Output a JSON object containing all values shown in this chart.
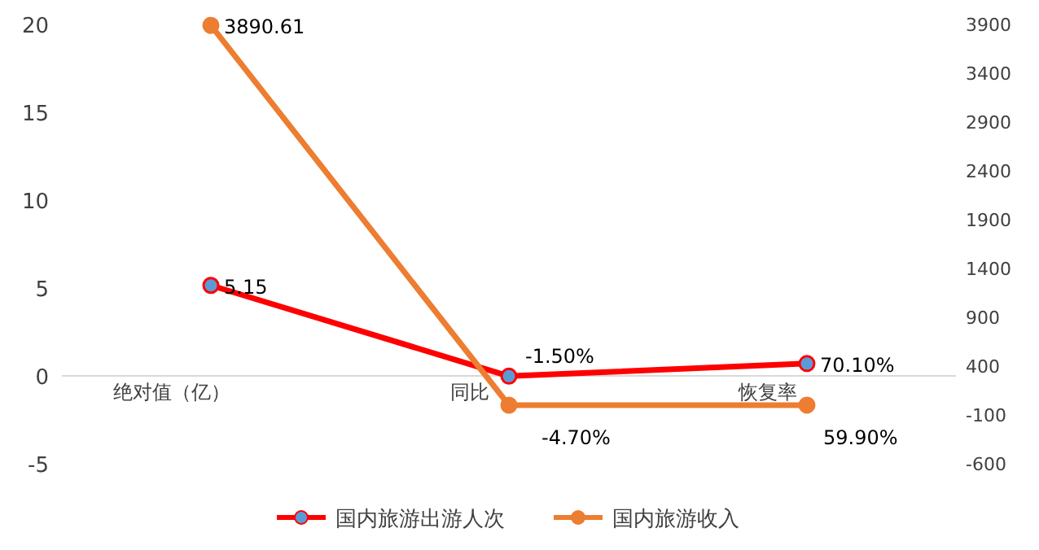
{
  "chart_data": {
    "type": "line",
    "categories": [
      "绝对值（亿）",
      "同比",
      "恢复率"
    ],
    "series": [
      {
        "name": "国内旅游出游人次",
        "color": "#ff0000",
        "values": [
          5.15,
          -0.015,
          0.701
        ],
        "value_labels": [
          "5.15",
          "-1.50%",
          "70.10%"
        ]
      },
      {
        "name": "国内旅游收入",
        "color": "#ed7d31",
        "axis": "y2",
        "values": [
          3890.61,
          -0.047,
          0.599
        ],
        "value_labels": [
          "3890.61",
          "-4.70%",
          "59.90%"
        ]
      }
    ],
    "ylim": [
      -5,
      20
    ],
    "yticks": [
      -5,
      0,
      5,
      10,
      15,
      20
    ],
    "y2lim": [
      -600,
      3900
    ],
    "y2ticks": [
      -600,
      -100,
      400,
      900,
      1400,
      1900,
      2400,
      2900,
      3400,
      3900
    ],
    "marker": "circle",
    "line_style": "solid",
    "legend": "bottom",
    "grid": false
  }
}
